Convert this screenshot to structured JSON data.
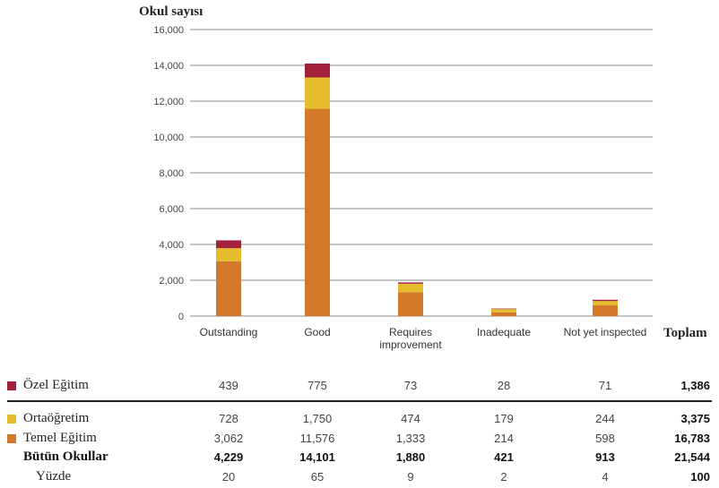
{
  "chart_data": {
    "type": "bar",
    "stacked": true,
    "ylabel": "Okul sayısı",
    "ylim": [
      0,
      16000
    ],
    "yticks": [
      "0",
      "2,000",
      "4,000",
      "6,000",
      "8,000",
      "10,000",
      "12,000",
      "14,000",
      "16,000"
    ],
    "grid": true,
    "categories": [
      "Outstanding",
      "Good",
      "Requires improvement",
      "Inadequate",
      "Not yet inspected"
    ],
    "category_labels": [
      [
        "Outstanding"
      ],
      [
        "Good"
      ],
      [
        "Requires",
        "improvement"
      ],
      [
        "Inadequate"
      ],
      [
        "Not yet inspected"
      ]
    ],
    "series": [
      {
        "name": "Temel Eğitim",
        "color": "#d4792a",
        "values": [
          3062,
          11576,
          1333,
          214,
          598
        ]
      },
      {
        "name": "Ortaöğretim",
        "color": "#e6bd2e",
        "values": [
          728,
          1750,
          474,
          179,
          244
        ]
      },
      {
        "name": "Özel Eğitim",
        "color": "#a3213d",
        "values": [
          439,
          775,
          73,
          28,
          71
        ]
      }
    ]
  },
  "table": {
    "total_header": "Toplam",
    "rows": [
      {
        "label": "Özel Eğitim",
        "swatch": "#a3213d",
        "values": [
          "439",
          "775",
          "73",
          "28",
          "71"
        ],
        "total": "1,386",
        "bold": false
      },
      {
        "label": "Ortaöğretim",
        "swatch": "#e6bd2e",
        "values": [
          "728",
          "1,750",
          "474",
          "179",
          "244"
        ],
        "total": "3,375",
        "bold": false
      },
      {
        "label": "Temel Eğitim",
        "swatch": "#d4792a",
        "values": [
          "3,062",
          "11,576",
          "1,333",
          "214",
          "598"
        ],
        "total": "16,783",
        "bold": false
      },
      {
        "label": "Bütün Okullar",
        "swatch": "",
        "values": [
          "4,229",
          "14,101",
          "1,880",
          "421",
          "913"
        ],
        "total": "21,544",
        "bold": true
      },
      {
        "label": "Yüzde",
        "swatch": "",
        "values": [
          "20",
          "65",
          "9",
          "2",
          "4"
        ],
        "total": "100",
        "bold": false
      }
    ]
  }
}
